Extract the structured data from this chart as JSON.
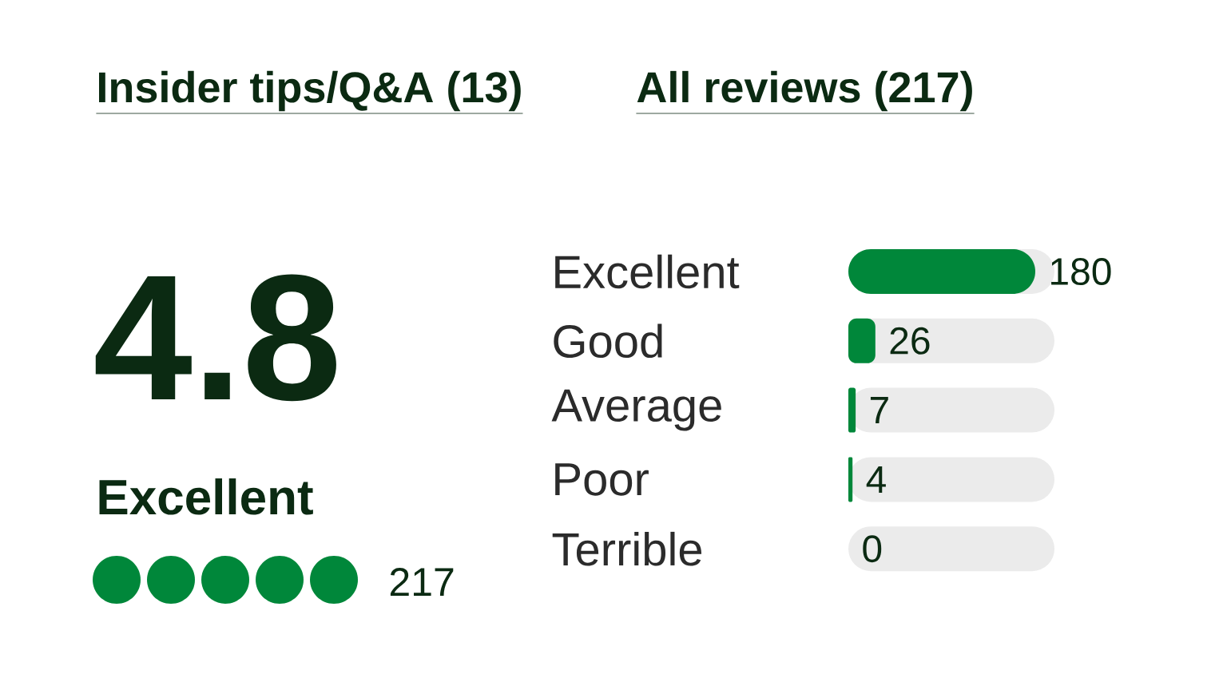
{
  "chart_data": {
    "type": "bar",
    "orientation": "horizontal",
    "categories": [
      "Excellent",
      "Good",
      "Average",
      "Poor",
      "Terrible"
    ],
    "values": [
      180,
      26,
      7,
      4,
      0
    ],
    "color": "#00873a",
    "data_labels": true,
    "annotations": [
      "Insider tips/Q&A (13)",
      "All reviews (217)",
      "4.8",
      "Excellent",
      "217"
    ]
  }
}
